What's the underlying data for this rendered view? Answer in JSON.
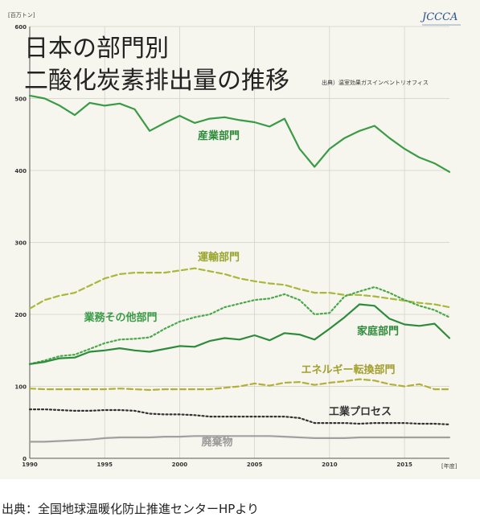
{
  "chart_data": {
    "type": "line",
    "title_line1": "日本の部門別",
    "title_line2": "二酸化炭素排出量の推移",
    "source_note": "出典）温室効果ガスインベントリオフィス",
    "y_unit": "[百万トン]",
    "x_unit": "[年度]",
    "ylim": [
      0,
      600
    ],
    "xlim": [
      1990,
      2018
    ],
    "y_ticks": [
      "0",
      "100",
      "200",
      "300",
      "400",
      "500",
      "600"
    ],
    "x_ticks": [
      "1990",
      "1995",
      "2000",
      "2005",
      "2010",
      "2015"
    ],
    "grid": true,
    "x": [
      1990,
      1991,
      1992,
      1993,
      1994,
      1995,
      1996,
      1997,
      1998,
      1999,
      2000,
      2001,
      2002,
      2003,
      2004,
      2005,
      2006,
      2007,
      2008,
      2009,
      2010,
      2011,
      2012,
      2013,
      2014,
      2015,
      2016,
      2017,
      2018
    ],
    "series": [
      {
        "name": "産業部門",
        "style": "solid",
        "color": "#3a9b46",
        "values": [
          504,
          500,
          490,
          477,
          494,
          490,
          493,
          485,
          455,
          466,
          476,
          466,
          472,
          474,
          470,
          467,
          461,
          472,
          430,
          405,
          430,
          445,
          455,
          462,
          445,
          430,
          418,
          410,
          398
        ]
      },
      {
        "name": "運輸部門",
        "style": "dashed",
        "color": "#a9b73a",
        "values": [
          208,
          220,
          226,
          230,
          240,
          250,
          256,
          258,
          258,
          258,
          261,
          264,
          260,
          256,
          250,
          246,
          243,
          241,
          235,
          230,
          230,
          227,
          227,
          225,
          222,
          219,
          216,
          214,
          210
        ]
      },
      {
        "name": "業務その他部門",
        "style": "dotted",
        "color": "#4aa84a",
        "values": [
          131,
          136,
          142,
          144,
          152,
          160,
          165,
          166,
          168,
          180,
          190,
          196,
          200,
          210,
          215,
          220,
          222,
          228,
          220,
          200,
          202,
          225,
          232,
          238,
          230,
          220,
          212,
          206,
          196
        ]
      },
      {
        "name": "家庭部門",
        "style": "solid",
        "color": "#2e8b3c",
        "values": [
          131,
          134,
          139,
          140,
          148,
          150,
          153,
          150,
          148,
          152,
          156,
          155,
          163,
          167,
          165,
          171,
          164,
          174,
          172,
          165,
          180,
          196,
          214,
          212,
          194,
          186,
          184,
          187,
          167
        ]
      },
      {
        "name": "エネルギー転換部門",
        "style": "dashed",
        "color": "#b3b03a",
        "values": [
          97,
          96,
          96,
          96,
          96,
          96,
          97,
          96,
          95,
          96,
          96,
          96,
          96,
          98,
          100,
          104,
          101,
          105,
          106,
          102,
          105,
          107,
          110,
          108,
          103,
          100,
          103,
          96,
          96
        ]
      },
      {
        "name": "工業プロセス",
        "style": "dotted",
        "color": "#333333",
        "values": [
          68,
          68,
          67,
          66,
          66,
          67,
          67,
          66,
          62,
          61,
          61,
          60,
          58,
          58,
          58,
          58,
          58,
          58,
          56,
          49,
          49,
          49,
          48,
          49,
          49,
          49,
          48,
          48,
          47
        ]
      },
      {
        "name": "廃棄物",
        "style": "solid",
        "color": "#a0a0a0",
        "values": [
          23,
          23,
          24,
          25,
          26,
          28,
          29,
          29,
          29,
          30,
          30,
          31,
          31,
          31,
          31,
          31,
          31,
          30,
          29,
          28,
          28,
          28,
          29,
          29,
          29,
          29,
          29,
          29,
          29
        ]
      }
    ]
  },
  "caption": "出典：全国地球温暖化防止推進センターHPより",
  "logo_text": "JCCCA"
}
